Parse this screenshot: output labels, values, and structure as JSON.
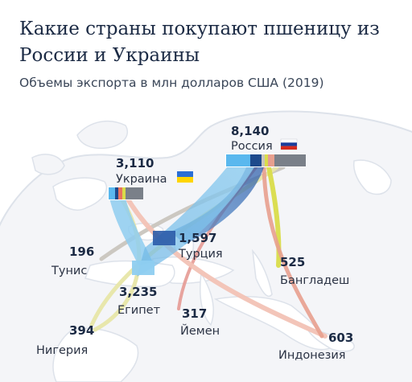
{
  "title": "Какие страны покупают пшеницу из России и Украины",
  "subtitle": "Объемы экспорта в млн долларов США (2019)",
  "chart_data": {
    "type": "flow-map",
    "exporters": [
      {
        "name": "Россия",
        "value": "8,140",
        "flag": [
          "#ffffff",
          "#1a3d9c",
          "#d52b1e"
        ]
      },
      {
        "name": "Украина",
        "value": "3,110",
        "flag": [
          "#2a6fd6",
          "#ffd500"
        ]
      }
    ],
    "importers": [
      {
        "name": "Египет",
        "value": "3,235",
        "color": "#8ecdf0"
      },
      {
        "name": "Турция",
        "value": "1,597",
        "color": "#1e4a8c"
      },
      {
        "name": "Нигерия",
        "value": "394",
        "color": "#e7e6a8"
      },
      {
        "name": "Бангладеш",
        "value": "525",
        "color": "#d9dc4a"
      },
      {
        "name": "Йемен",
        "value": "317",
        "color": "#f0b5b0"
      },
      {
        "name": "Индонезия",
        "value": "603",
        "color": "#f2c2b5"
      },
      {
        "name": "Тунис",
        "value": "196",
        "color": "#c9c5be"
      }
    ]
  }
}
